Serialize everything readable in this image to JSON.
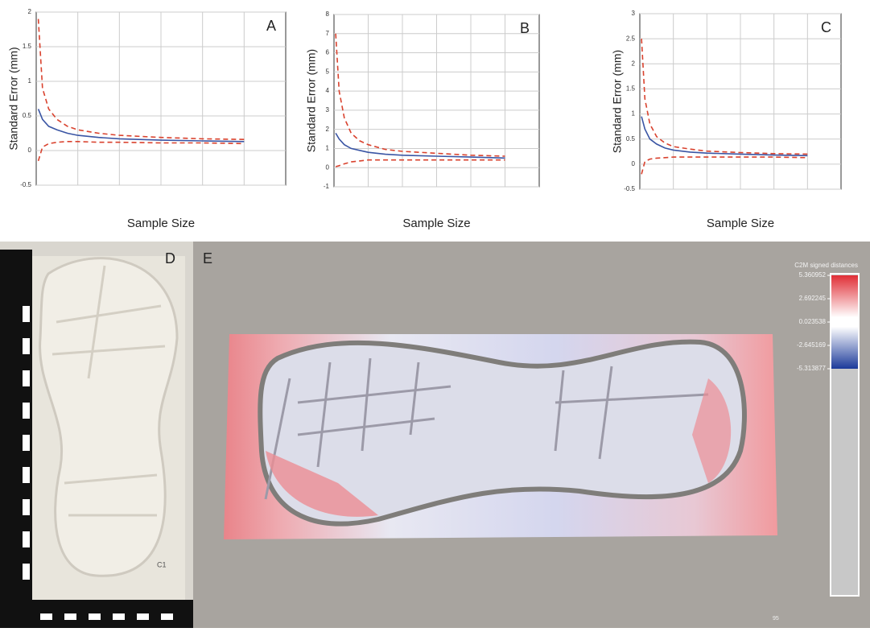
{
  "chart_data": [
    {
      "type": "line",
      "panel_label": "A",
      "ylabel": "Standard Error (mm)",
      "xlabel": "Sample Size",
      "x": [
        1,
        3,
        6,
        10,
        15,
        20,
        30,
        40,
        60,
        80,
        100
      ],
      "xlim": [
        0,
        120
      ],
      "ylim": [
        -0.5,
        2
      ],
      "yticks": [
        -0.5,
        0,
        0.5,
        1,
        1.5,
        2
      ],
      "grid": true,
      "series": [
        {
          "color": "#3a55a4",
          "dashed": false,
          "values": [
            0.6,
            0.45,
            0.35,
            0.3,
            0.25,
            0.22,
            0.19,
            0.17,
            0.15,
            0.14,
            0.13
          ]
        },
        {
          "color": "#d9422e",
          "dashed": true,
          "values": [
            1.9,
            0.9,
            0.6,
            0.45,
            0.35,
            0.3,
            0.25,
            0.22,
            0.19,
            0.17,
            0.16
          ]
        },
        {
          "color": "#d9422e",
          "dashed": true,
          "values": [
            -0.15,
            0.05,
            0.1,
            0.12,
            0.13,
            0.13,
            0.12,
            0.12,
            0.11,
            0.11,
            0.1
          ]
        }
      ]
    },
    {
      "type": "line",
      "panel_label": "B",
      "ylabel": "Standard Error (mm)",
      "xlabel": "Sample Size",
      "x": [
        1,
        3,
        6,
        10,
        15,
        20,
        30,
        40,
        60,
        80,
        100
      ],
      "xlim": [
        0,
        120
      ],
      "ylim": [
        -1,
        8
      ],
      "yticks": [
        -1,
        0,
        1,
        2,
        3,
        4,
        5,
        6,
        7,
        8
      ],
      "grid": true,
      "series": [
        {
          "color": "#3a55a4",
          "dashed": false,
          "values": [
            1.8,
            1.5,
            1.2,
            1.0,
            0.9,
            0.8,
            0.7,
            0.65,
            0.6,
            0.55,
            0.5
          ]
        },
        {
          "color": "#d9422e",
          "dashed": true,
          "values": [
            7,
            4,
            2.6,
            1.8,
            1.4,
            1.2,
            0.95,
            0.85,
            0.75,
            0.65,
            0.6
          ]
        },
        {
          "color": "#d9422e",
          "dashed": true,
          "values": [
            0.05,
            0.1,
            0.2,
            0.3,
            0.35,
            0.4,
            0.4,
            0.4,
            0.4,
            0.4,
            0.4
          ]
        }
      ]
    },
    {
      "type": "line",
      "panel_label": "C",
      "ylabel": "Standard Error (mm)",
      "xlabel": "Sample Size",
      "x": [
        1,
        3,
        6,
        10,
        15,
        20,
        30,
        40,
        60,
        80,
        100
      ],
      "xlim": [
        0,
        120
      ],
      "ylim": [
        -0.5,
        3
      ],
      "yticks": [
        -0.5,
        0,
        0.5,
        1,
        1.5,
        2,
        2.5,
        3
      ],
      "grid": true,
      "series": [
        {
          "color": "#3a55a4",
          "dashed": false,
          "values": [
            0.95,
            0.7,
            0.5,
            0.4,
            0.32,
            0.28,
            0.24,
            0.22,
            0.2,
            0.18,
            0.17
          ]
        },
        {
          "color": "#d9422e",
          "dashed": true,
          "values": [
            2.5,
            1.3,
            0.8,
            0.55,
            0.42,
            0.35,
            0.3,
            0.26,
            0.23,
            0.21,
            0.2
          ]
        },
        {
          "color": "#d9422e",
          "dashed": true,
          "values": [
            -0.2,
            0.05,
            0.1,
            0.12,
            0.13,
            0.14,
            0.14,
            0.14,
            0.14,
            0.14,
            0.13
          ]
        }
      ]
    }
  ],
  "panels": {
    "D": {
      "label": "D",
      "cast_label": "C1"
    },
    "E": {
      "label": "E",
      "corner_number": "95",
      "colorbar": {
        "title": "C2M signed distances",
        "ticks": [
          5.360952,
          2.692245,
          0.023538,
          -2.645169,
          -5.313877
        ]
      }
    }
  }
}
